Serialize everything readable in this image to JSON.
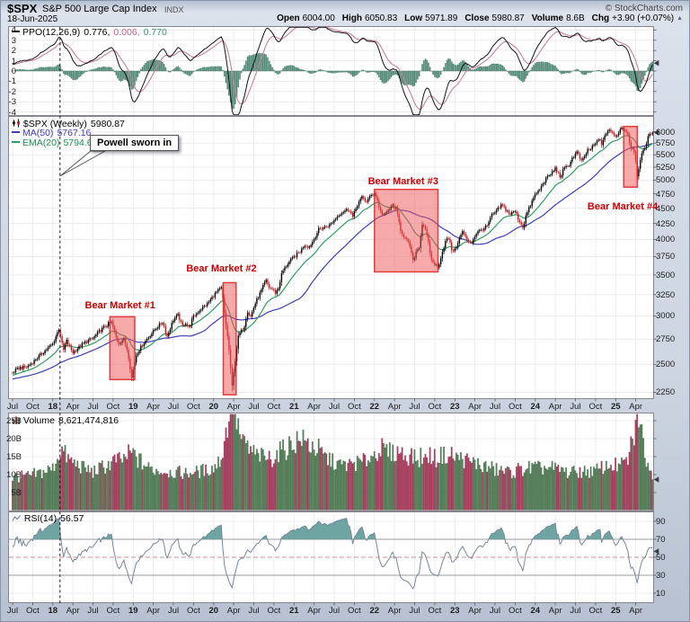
{
  "header": {
    "symbol": "$SPX",
    "name": "S&P 500 Large Cap Index",
    "exchange": "INDX",
    "date": "18-Jun-2025",
    "copyright": "© StockCharts.com",
    "quote": [
      {
        "label": "Open",
        "value": "6004.00"
      },
      {
        "label": "High",
        "value": "6050.83"
      },
      {
        "label": "Low",
        "value": "5971.89"
      },
      {
        "label": "Close",
        "value": "5980.87"
      },
      {
        "label": "Volume",
        "value": "8.6B"
      },
      {
        "label": "Chg",
        "value": "+3.90 (+0.07%)"
      }
    ],
    "chg_direction": "up"
  },
  "panels": {
    "ppo": {
      "label": "PPO(12,26,9)",
      "value_ppo": "0.776,",
      "value_hist": "0.006,",
      "value_signal": "0.770",
      "axis": [
        4,
        3,
        2,
        1,
        0,
        -1,
        -2,
        -3,
        -4
      ]
    },
    "price": {
      "symbol_label": "$SPX (Weekly)",
      "close_value": "5980.87",
      "ma_label": "MA(50)",
      "ma_value": "5767.16",
      "ema_label": "EMA(20)",
      "ema_value": "5794.62",
      "axis": [
        6000,
        5750,
        5500,
        5250,
        5000,
        4750,
        4500,
        4250,
        4000,
        3750,
        3500,
        3250,
        3000,
        2750,
        2500,
        2250
      ]
    },
    "volume": {
      "label": "Volume",
      "value": "8,621,474,816",
      "axis": [
        "25B",
        "20B",
        "15B",
        "10B",
        "5B"
      ],
      "axis_values": [
        25,
        20,
        15,
        10,
        5
      ]
    },
    "rsi": {
      "label": "RSI(14)",
      "value": "56.57",
      "axis": [
        90,
        70,
        50,
        30,
        10
      ]
    }
  },
  "annotations": {
    "powell": {
      "text": "Powell sworn in",
      "t": 2018.09
    }
  },
  "x_axis": {
    "start_t": 2017.5,
    "step": 0.25,
    "labels": [
      "Jul",
      "Oct",
      "18",
      "Apr",
      "Jul",
      "Oct",
      "19",
      "Apr",
      "Jul",
      "Oct",
      "20",
      "Apr",
      "Jul",
      "Oct",
      "21",
      "Apr",
      "Jul",
      "Oct",
      "22",
      "Apr",
      "Jul",
      "Oct",
      "23",
      "Apr",
      "Jul",
      "Oct",
      "24",
      "Apr",
      "Jul",
      "Oct",
      "25",
      "Apr"
    ]
  },
  "colors": {
    "candle_up": "#000000",
    "candle_down": "#cc1414",
    "ma50": "#3d3dba",
    "ema20": "#2f9e60",
    "ppo_line": "#141414",
    "ppo_signal": "#c87f9f",
    "ppo_hist": "#55917d",
    "vol_up": "#55855a",
    "vol_down": "#b63a60",
    "rsi_line": "#76879b",
    "rsi_fill": "#5e9b98",
    "bear_fill": "#ee5555",
    "bear_stroke": "#dd2222",
    "annotation_red": "#cc0000",
    "grid": "#ececf0",
    "panel_border": "#85858d"
  },
  "chart_data": {
    "type": "candlestick",
    "symbol": "$SPX",
    "timeframe": "weekly",
    "title": "$SPX (Weekly) with MA(50), EMA(20), PPO(12,26,9), Volume, RSI(14)",
    "x_range": [
      2017.5,
      2025.46
    ],
    "last_close": 5980.87,
    "y_axis": {
      "scale": "log",
      "ticks": [
        6000,
        5750,
        5500,
        5250,
        5000,
        4750,
        4500,
        4250,
        4000,
        3750,
        3500,
        3250,
        3000,
        2750,
        2500,
        2250
      ],
      "render_range": [
        2201,
        6346
      ]
    },
    "indicators": {
      "ppo": {
        "params": [
          12,
          26,
          9
        ],
        "last": [
          0.776,
          0.006,
          0.77
        ],
        "render_range": [
          -4.3,
          4.3
        ]
      },
      "ma": {
        "params": [
          50
        ],
        "last": 5767.16
      },
      "ema": {
        "params": [
          20
        ],
        "last": 5794.62
      },
      "rsi": {
        "params": [
          14
        ],
        "last": 56.57,
        "guides": [
          70,
          50,
          30
        ]
      },
      "volume": {
        "last": 8621474816,
        "axis_max_billion": 27
      }
    },
    "powell_line_t": 2018.09,
    "bear_markets": [
      {
        "label": "Bear Market #1",
        "t": [
          2018.71,
          2019.02
        ],
        "price": [
          2360,
          2990
        ],
        "label_at": [
          2018.4,
          3180
        ]
      },
      {
        "label": "Bear Market #2",
        "t": [
          2020.12,
          2020.28
        ],
        "price": [
          2230,
          3400
        ],
        "label_at": [
          2019.66,
          3650
        ]
      },
      {
        "label": "Bear Market #3",
        "t": [
          2022.0,
          2022.79
        ],
        "price": [
          3540,
          4830
        ],
        "label_at": [
          2021.92,
          5080
        ]
      },
      {
        "label": "Bear Market #4",
        "t": [
          2025.1,
          2025.27
        ],
        "price": [
          4870,
          6120
        ],
        "label_at": [
          2024.65,
          4610
        ]
      }
    ],
    "price_close_anchors": [
      [
        2017.5,
        2422
      ],
      [
        2017.58,
        2468
      ],
      [
        2017.67,
        2472
      ],
      [
        2017.75,
        2520
      ],
      [
        2017.83,
        2578
      ],
      [
        2017.92,
        2645
      ],
      [
        2018.0,
        2700
      ],
      [
        2018.08,
        2865
      ],
      [
        2018.13,
        2625
      ],
      [
        2018.17,
        2735
      ],
      [
        2018.22,
        2655
      ],
      [
        2018.25,
        2615
      ],
      [
        2018.33,
        2670
      ],
      [
        2018.42,
        2725
      ],
      [
        2018.5,
        2755
      ],
      [
        2018.58,
        2830
      ],
      [
        2018.67,
        2900
      ],
      [
        2018.73,
        2930
      ],
      [
        2018.79,
        2760
      ],
      [
        2018.82,
        2700
      ],
      [
        2018.88,
        2755
      ],
      [
        2018.93,
        2630
      ],
      [
        2018.98,
        2375
      ],
      [
        2019.04,
        2600
      ],
      [
        2019.13,
        2707
      ],
      [
        2019.21,
        2790
      ],
      [
        2019.29,
        2870
      ],
      [
        2019.37,
        2935
      ],
      [
        2019.42,
        2770
      ],
      [
        2019.5,
        2960
      ],
      [
        2019.56,
        3010
      ],
      [
        2019.61,
        2880
      ],
      [
        2019.65,
        2930
      ],
      [
        2019.69,
        2865
      ],
      [
        2019.75,
        2990
      ],
      [
        2019.83,
        3070
      ],
      [
        2019.92,
        3135
      ],
      [
        2020.0,
        3240
      ],
      [
        2020.06,
        3300
      ],
      [
        2020.1,
        3335
      ],
      [
        2020.14,
        2970
      ],
      [
        2020.18,
        2740
      ],
      [
        2020.23,
        2295
      ],
      [
        2020.27,
        2550
      ],
      [
        2020.31,
        2790
      ],
      [
        2020.38,
        2875
      ],
      [
        2020.42,
        3060
      ],
      [
        2020.46,
        2990
      ],
      [
        2020.52,
        3150
      ],
      [
        2020.58,
        3270
      ],
      [
        2020.65,
        3430
      ],
      [
        2020.69,
        3340
      ],
      [
        2020.73,
        3320
      ],
      [
        2020.77,
        3270
      ],
      [
        2020.81,
        3340
      ],
      [
        2020.85,
        3530
      ],
      [
        2020.92,
        3650
      ],
      [
        2020.98,
        3720
      ],
      [
        2021.04,
        3790
      ],
      [
        2021.08,
        3830
      ],
      [
        2021.13,
        3920
      ],
      [
        2021.19,
        3890
      ],
      [
        2021.25,
        4010
      ],
      [
        2021.31,
        4160
      ],
      [
        2021.38,
        4190
      ],
      [
        2021.44,
        4220
      ],
      [
        2021.5,
        4300
      ],
      [
        2021.56,
        4400
      ],
      [
        2021.63,
        4460
      ],
      [
        2021.69,
        4480
      ],
      [
        2021.73,
        4350
      ],
      [
        2021.79,
        4570
      ],
      [
        2021.85,
        4690
      ],
      [
        2021.9,
        4610
      ],
      [
        2021.96,
        4720
      ],
      [
        2022.0,
        4780
      ],
      [
        2022.04,
        4620
      ],
      [
        2022.08,
        4420
      ],
      [
        2022.13,
        4380
      ],
      [
        2022.17,
        4460
      ],
      [
        2022.23,
        4550
      ],
      [
        2022.27,
        4480
      ],
      [
        2022.33,
        4130
      ],
      [
        2022.38,
        4020
      ],
      [
        2022.44,
        3910
      ],
      [
        2022.48,
        3680
      ],
      [
        2022.52,
        3830
      ],
      [
        2022.56,
        3900
      ],
      [
        2022.6,
        4280
      ],
      [
        2022.65,
        4070
      ],
      [
        2022.71,
        3700
      ],
      [
        2022.75,
        3650
      ],
      [
        2022.79,
        3590
      ],
      [
        2022.83,
        3760
      ],
      [
        2022.88,
        3960
      ],
      [
        2022.92,
        4030
      ],
      [
        2022.96,
        3850
      ],
      [
        2023.0,
        3840
      ],
      [
        2023.04,
        3970
      ],
      [
        2023.1,
        4130
      ],
      [
        2023.15,
        3980
      ],
      [
        2023.21,
        3960
      ],
      [
        2023.27,
        4100
      ],
      [
        2023.33,
        4150
      ],
      [
        2023.4,
        4200
      ],
      [
        2023.46,
        4380
      ],
      [
        2023.52,
        4450
      ],
      [
        2023.58,
        4560
      ],
      [
        2023.63,
        4480
      ],
      [
        2023.69,
        4400
      ],
      [
        2023.75,
        4450
      ],
      [
        2023.79,
        4320
      ],
      [
        2023.85,
        4180
      ],
      [
        2023.88,
        4360
      ],
      [
        2023.94,
        4550
      ],
      [
        2024.0,
        4740
      ],
      [
        2024.06,
        4830
      ],
      [
        2024.1,
        4960
      ],
      [
        2024.17,
        5080
      ],
      [
        2024.21,
        5150
      ],
      [
        2024.25,
        5230
      ],
      [
        2024.31,
        5060
      ],
      [
        2024.35,
        5200
      ],
      [
        2024.42,
        5300
      ],
      [
        2024.46,
        5430
      ],
      [
        2024.52,
        5560
      ],
      [
        2024.58,
        5350
      ],
      [
        2024.61,
        5450
      ],
      [
        2024.65,
        5600
      ],
      [
        2024.69,
        5620
      ],
      [
        2024.73,
        5700
      ],
      [
        2024.77,
        5780
      ],
      [
        2024.81,
        5830
      ],
      [
        2024.83,
        5710
      ],
      [
        2024.88,
        5970
      ],
      [
        2024.92,
        6060
      ],
      [
        2024.96,
        5950
      ],
      [
        2025.0,
        5880
      ],
      [
        2025.04,
        6010
      ],
      [
        2025.08,
        6110
      ],
      [
        2025.12,
        6030
      ],
      [
        2025.15,
        5960
      ],
      [
        2025.19,
        5640
      ],
      [
        2025.21,
        5680
      ],
      [
        2025.25,
        5400
      ],
      [
        2025.27,
        5060
      ],
      [
        2025.29,
        5280
      ],
      [
        2025.33,
        5520
      ],
      [
        2025.37,
        5680
      ],
      [
        2025.4,
        5890
      ],
      [
        2025.44,
        5950
      ],
      [
        2025.46,
        5981
      ]
    ],
    "volume_anchors_billion": [
      [
        2017.5,
        9
      ],
      [
        2017.75,
        9.5
      ],
      [
        2018.0,
        11.5
      ],
      [
        2018.1,
        16
      ],
      [
        2018.2,
        13.5
      ],
      [
        2018.35,
        12
      ],
      [
        2018.5,
        10.5
      ],
      [
        2018.75,
        13
      ],
      [
        2018.9,
        14
      ],
      [
        2019.0,
        14.5
      ],
      [
        2019.2,
        11.5
      ],
      [
        2019.4,
        10.5
      ],
      [
        2019.6,
        10
      ],
      [
        2019.8,
        10.5
      ],
      [
        2020.0,
        11.5
      ],
      [
        2020.12,
        15
      ],
      [
        2020.18,
        22
      ],
      [
        2020.23,
        26
      ],
      [
        2020.3,
        21
      ],
      [
        2020.4,
        17
      ],
      [
        2020.55,
        14.5
      ],
      [
        2020.7,
        14
      ],
      [
        2020.85,
        16
      ],
      [
        2021.0,
        18.5
      ],
      [
        2021.1,
        19.5
      ],
      [
        2021.25,
        17
      ],
      [
        2021.4,
        14.5
      ],
      [
        2021.55,
        12.5
      ],
      [
        2021.7,
        12.5
      ],
      [
        2021.85,
        13
      ],
      [
        2022.0,
        15.5
      ],
      [
        2022.1,
        16.5
      ],
      [
        2022.25,
        15.5
      ],
      [
        2022.4,
        15
      ],
      [
        2022.55,
        13.5
      ],
      [
        2022.7,
        14
      ],
      [
        2022.85,
        14.5
      ],
      [
        2023.0,
        14.5
      ],
      [
        2023.15,
        13.5
      ],
      [
        2023.3,
        12.5
      ],
      [
        2023.5,
        11
      ],
      [
        2023.7,
        10.5
      ],
      [
        2023.85,
        11
      ],
      [
        2024.0,
        11.5
      ],
      [
        2024.2,
        11.5
      ],
      [
        2024.4,
        10.5
      ],
      [
        2024.6,
        10.5
      ],
      [
        2024.8,
        11
      ],
      [
        2024.95,
        12.5
      ],
      [
        2025.05,
        12
      ],
      [
        2025.15,
        13.5
      ],
      [
        2025.22,
        19
      ],
      [
        2025.28,
        25
      ],
      [
        2025.33,
        19
      ],
      [
        2025.38,
        14
      ],
      [
        2025.43,
        11
      ],
      [
        2025.46,
        8.6
      ]
    ]
  }
}
